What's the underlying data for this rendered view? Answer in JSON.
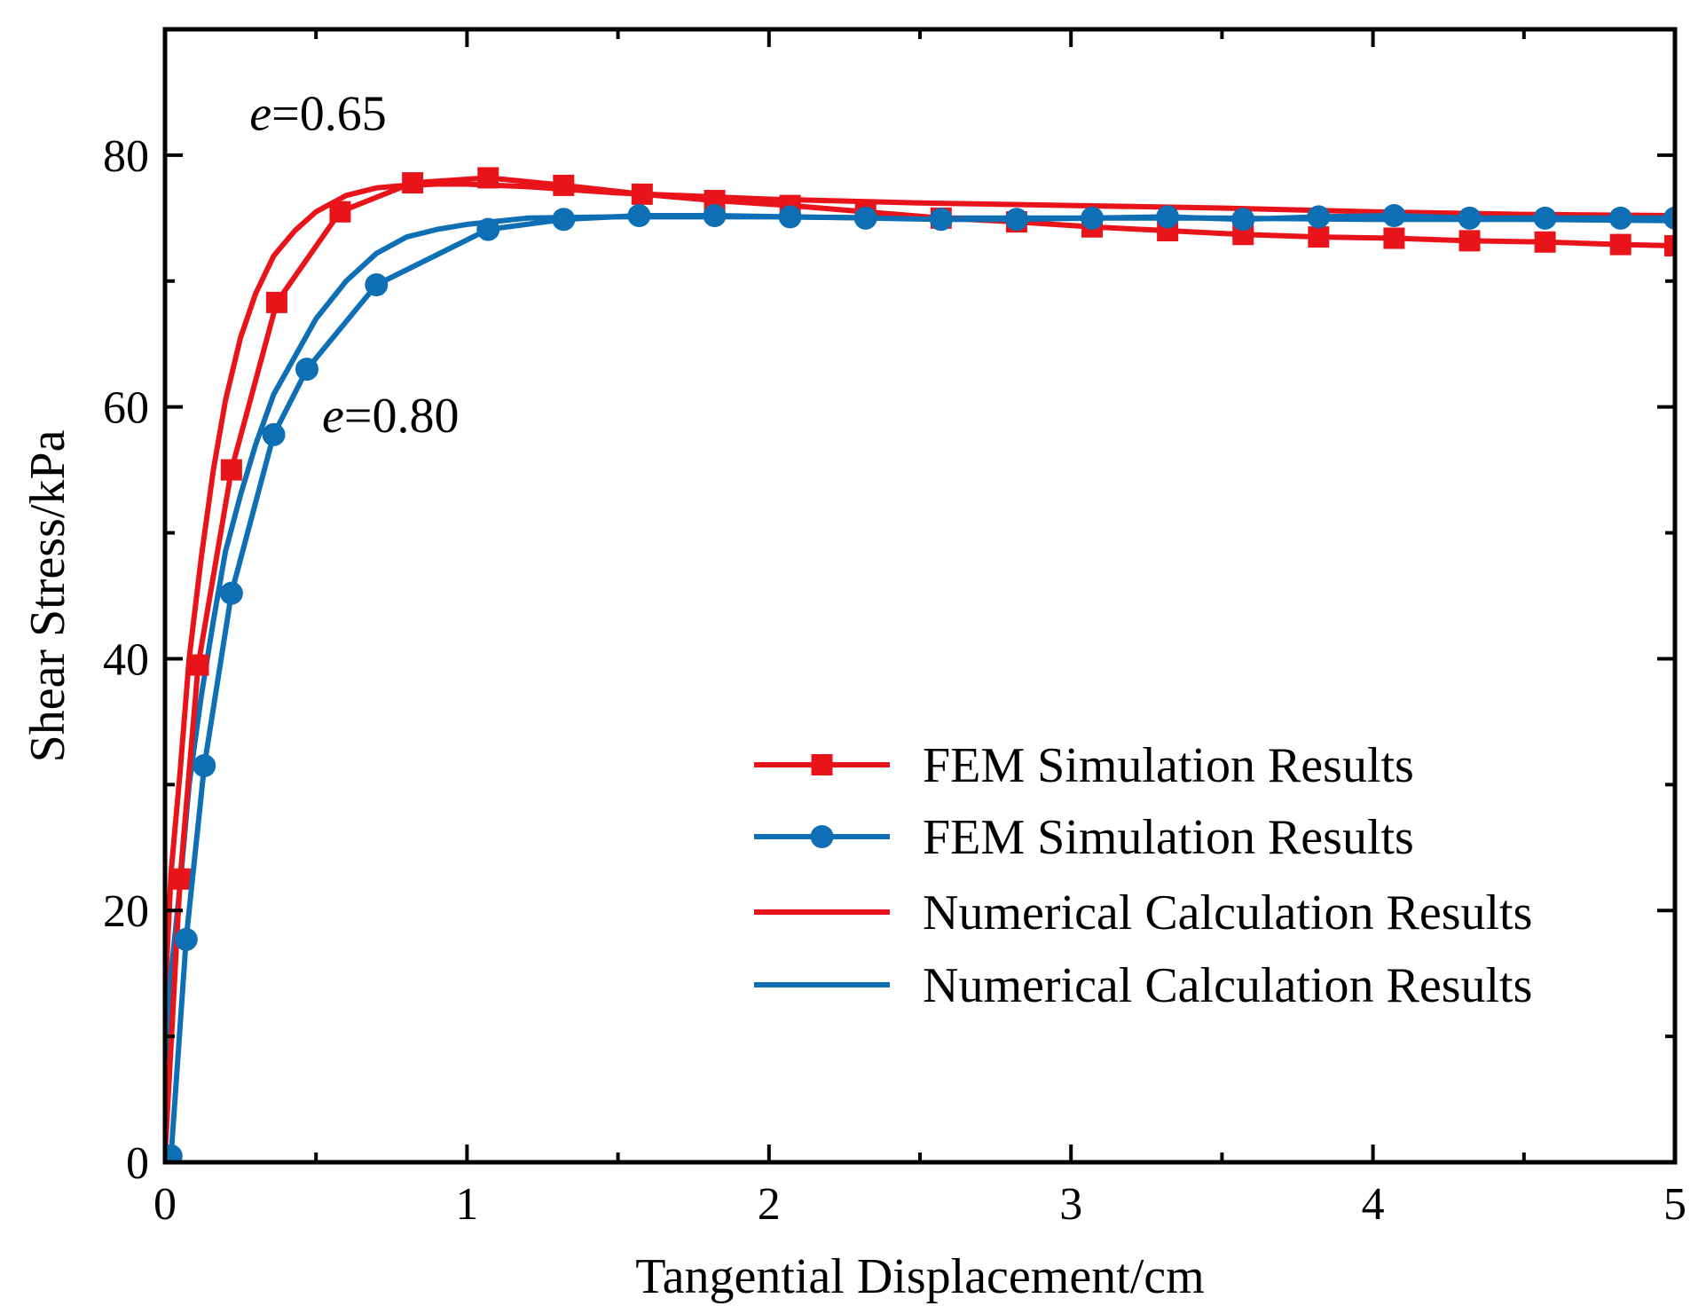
{
  "chart_data": {
    "type": "line",
    "title": "",
    "xlabel": "Tangential Displacement/cm",
    "ylabel": "Shear Stress/kPa",
    "xlim": [
      0,
      5
    ],
    "ylim": [
      0,
      90
    ],
    "xticks": [
      0,
      1,
      2,
      3,
      4,
      5
    ],
    "yticks": [
      0,
      20,
      40,
      60,
      80
    ],
    "xtick_labels": [
      "0",
      "1",
      "2",
      "3",
      "4",
      "5"
    ],
    "ytick_labels": [
      "0",
      "20",
      "40",
      "60",
      "80"
    ],
    "grid": false,
    "legend_position": "bottom-right",
    "annotations": [
      {
        "label_italic": "e",
        "label_rest": "=0.65",
        "x": 0.28,
        "y": 82
      },
      {
        "label_italic": "e",
        "label_rest": "=0.80",
        "x": 0.52,
        "y": 58
      }
    ],
    "series": [
      {
        "name": "FEM Simulation Results",
        "color": "#e8141a",
        "marker": "square",
        "x": [
          0.0,
          0.05,
          0.11,
          0.22,
          0.37,
          0.58,
          0.82,
          1.07,
          1.32,
          1.58,
          1.82,
          2.07,
          2.32,
          2.57,
          2.82,
          3.07,
          3.32,
          3.57,
          3.82,
          4.07,
          4.32,
          4.57,
          4.82,
          5.0
        ],
        "y": [
          0.5,
          22.5,
          39.5,
          55.0,
          68.3,
          75.5,
          77.8,
          78.2,
          77.6,
          76.9,
          76.4,
          76.0,
          75.5,
          75.0,
          74.7,
          74.3,
          74.0,
          73.7,
          73.5,
          73.4,
          73.2,
          73.1,
          72.9,
          72.8
        ]
      },
      {
        "name": "FEM Simulation Results",
        "color": "#0f6fb4",
        "marker": "circle",
        "x": [
          0.02,
          0.07,
          0.13,
          0.22,
          0.36,
          0.47,
          0.7,
          1.07,
          1.32,
          1.57,
          1.82,
          2.07,
          2.32,
          2.57,
          2.82,
          3.07,
          3.32,
          3.57,
          3.82,
          4.07,
          4.32,
          4.57,
          4.82,
          5.0
        ],
        "y": [
          0.5,
          17.7,
          31.5,
          45.2,
          57.8,
          63.0,
          69.7,
          74.1,
          74.9,
          75.2,
          75.2,
          75.1,
          75.0,
          74.9,
          74.9,
          75.0,
          75.1,
          74.9,
          75.1,
          75.2,
          75.0,
          75.0,
          75.0,
          75.0
        ]
      },
      {
        "name": "Numerical Calculation Results",
        "color": "#e8141a",
        "marker": "none",
        "x": [
          0.0,
          0.02,
          0.05,
          0.08,
          0.12,
          0.16,
          0.2,
          0.25,
          0.3,
          0.36,
          0.43,
          0.5,
          0.6,
          0.7,
          0.8,
          0.9,
          1.0,
          1.2,
          1.5,
          2.0,
          2.5,
          3.0,
          3.5,
          4.0,
          4.5,
          5.0
        ],
        "y": [
          13.0,
          23.0,
          31.0,
          40.0,
          48.0,
          55.0,
          60.5,
          65.5,
          69.0,
          72.0,
          74.0,
          75.5,
          76.8,
          77.4,
          77.6,
          77.7,
          77.7,
          77.5,
          77.0,
          76.5,
          76.2,
          76.0,
          75.8,
          75.5,
          75.3,
          75.2
        ]
      },
      {
        "name": "Numerical Calculation Results",
        "color": "#0f6fb4",
        "marker": "none",
        "x": [
          0.0,
          0.02,
          0.05,
          0.08,
          0.12,
          0.16,
          0.2,
          0.25,
          0.3,
          0.36,
          0.43,
          0.5,
          0.6,
          0.7,
          0.8,
          0.9,
          1.0,
          1.2,
          1.5,
          2.0,
          2.5,
          3.0,
          3.5,
          4.0,
          4.5,
          5.0
        ],
        "y": [
          8.0,
          15.0,
          22.0,
          30.0,
          37.0,
          43.0,
          48.5,
          53.0,
          57.0,
          61.0,
          64.0,
          67.0,
          70.0,
          72.2,
          73.5,
          74.1,
          74.5,
          75.0,
          75.1,
          75.1,
          75.0,
          75.0,
          75.0,
          74.9,
          74.9,
          74.8
        ]
      }
    ]
  }
}
